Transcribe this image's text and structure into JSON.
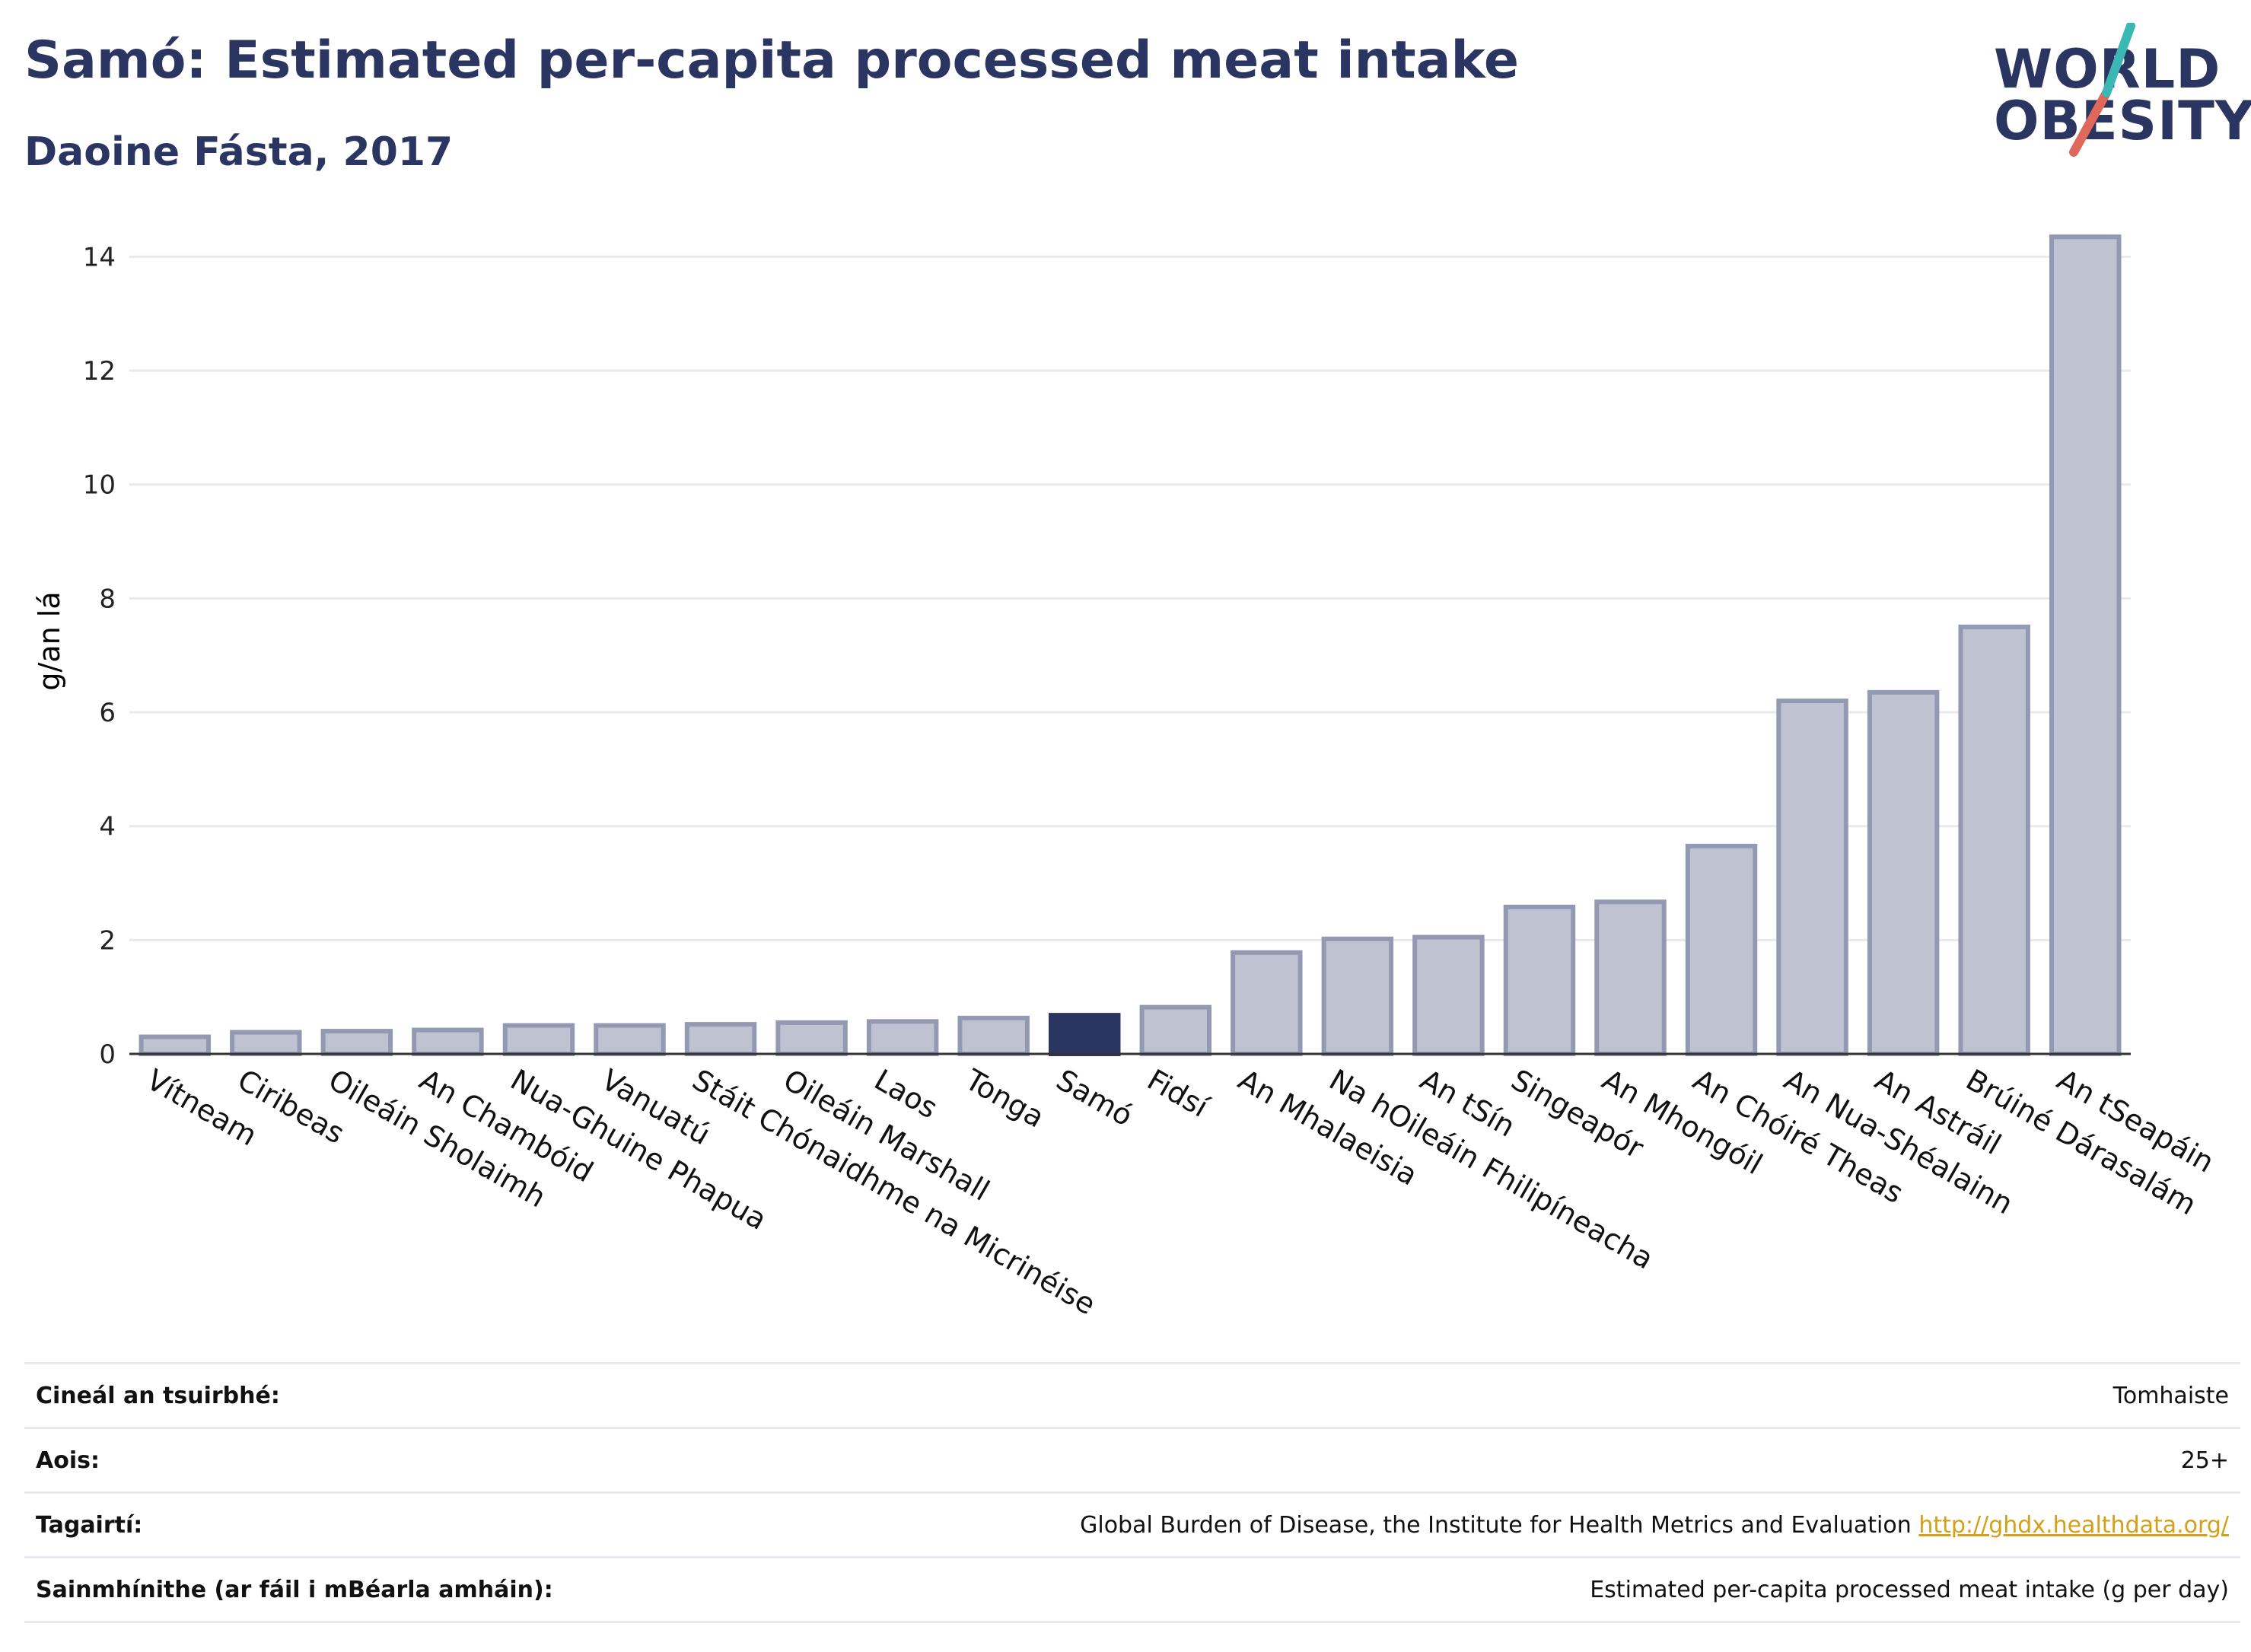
{
  "header": {
    "title": "Samó: Estimated per-capita processed meat intake",
    "subtitle": "Daoine Fásta, 2017"
  },
  "logo": {
    "line1": "WORLD",
    "line2": "OBESITY",
    "accent_teal": "#3bb7b4",
    "accent_red": "#e0685a"
  },
  "colors": {
    "bar": "#bfc2d0",
    "bar_edge": "#9499b3",
    "highlight": "#2a3561",
    "grid": "#e9e9ee",
    "axis": "#333333"
  },
  "chart_data": {
    "type": "bar",
    "ylabel": "g/an lá",
    "ylim": [
      0,
      14.5
    ],
    "yticks": [
      0,
      2,
      4,
      6,
      8,
      10,
      12,
      14
    ],
    "grid": true,
    "highlight": "Samó",
    "categories": [
      "Vítneam",
      "Ciribeas",
      "Oileáin Sholaimh",
      "An Chambóid",
      "Nua-Ghuine Phapua",
      "Vanuatú",
      "Stáit Chónaidhme na Micrinéise",
      "Oileáin Marshall",
      "Laos",
      "Tonga",
      "Samó",
      "Fidsí",
      "An Mhalaeisia",
      "Na hOileáin Fhilipíneacha",
      "An tSín",
      "Singeapór",
      "An Mhongóil",
      "An Chóiré Theas",
      "An Nua-Shéalainn",
      "An Astráil",
      "Brúiné Dárasalám",
      "An tSeapáin"
    ],
    "values": [
      0.3,
      0.38,
      0.4,
      0.42,
      0.5,
      0.5,
      0.52,
      0.55,
      0.57,
      0.63,
      0.68,
      0.82,
      1.78,
      2.02,
      2.05,
      2.58,
      2.67,
      3.65,
      6.2,
      6.35,
      7.5,
      14.35
    ]
  },
  "info": [
    {
      "label": "Cineál an tsuirbhé:",
      "value": "Tomhaiste"
    },
    {
      "label": "Aois:",
      "value": "25+"
    },
    {
      "label": "Tagairtí:",
      "value": "Global Burden of Disease, the Institute for Health Metrics and Evaluation",
      "link": "http://ghdx.healthdata.org/"
    },
    {
      "label": "Sainmhínithe (ar fáil i mBéarla amháin):",
      "value": "Estimated per-capita processed meat intake (g per day)"
    }
  ]
}
